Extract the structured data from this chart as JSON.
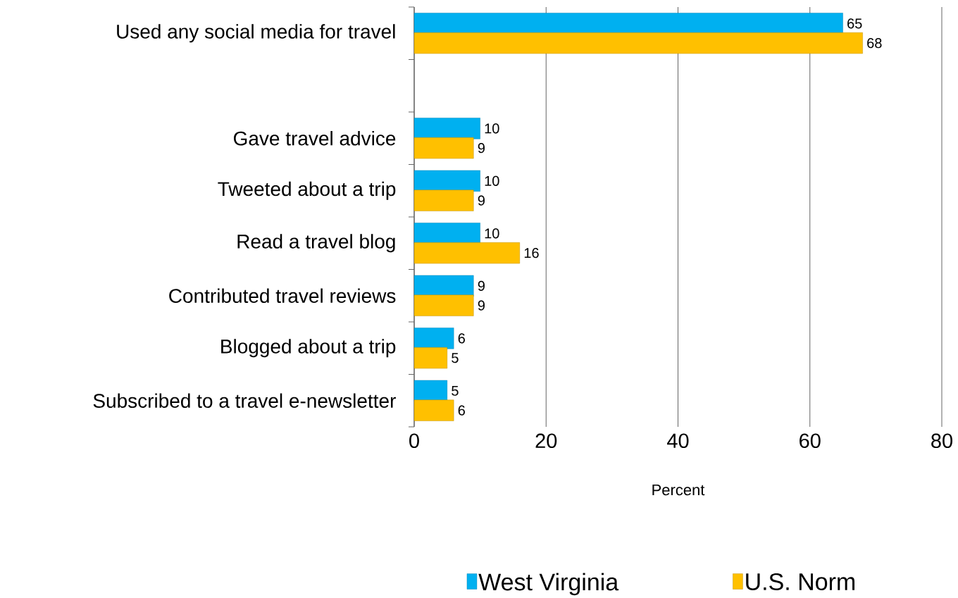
{
  "chart_data": {
    "type": "bar",
    "orientation": "horizontal",
    "xlabel": "Percent",
    "categories": [
      "Used any social media for travel",
      null,
      "Gave travel advice",
      "Tweeted about a trip",
      "Read a travel blog",
      "Contributed travel reviews",
      "Blogged about a trip",
      "Subscribed to a travel e-newsletter"
    ],
    "series": [
      {
        "name": "West Virginia",
        "color": "#00b0f0",
        "values": [
          65,
          null,
          10,
          10,
          10,
          9,
          6,
          5
        ]
      },
      {
        "name": "U.S. Norm",
        "color": "#ffc000",
        "values": [
          68,
          null,
          9,
          9,
          16,
          9,
          5,
          6
        ]
      }
    ],
    "xlim": [
      0,
      80
    ],
    "xticks": [
      0,
      20,
      40,
      60,
      80
    ],
    "grid": "x",
    "legend": "bottom",
    "data_labels": true
  }
}
